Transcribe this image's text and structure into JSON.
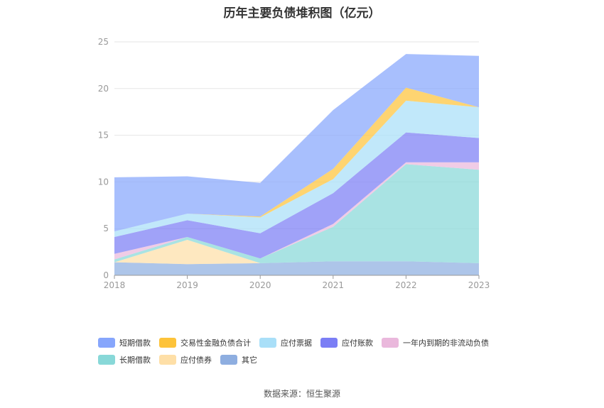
{
  "chart_data": {
    "type": "area",
    "stacked": true,
    "title": "历年主要负债堆积图（亿元）",
    "x": [
      "2018",
      "2019",
      "2020",
      "2021",
      "2022",
      "2023"
    ],
    "ylim": [
      0,
      25
    ],
    "yticks": [
      0,
      5,
      10,
      15,
      20,
      25
    ],
    "grid": true,
    "legend_position": "bottom",
    "series": [
      {
        "name": "其它",
        "color": "#8eaee0",
        "values": [
          1.4,
          1.2,
          1.3,
          1.5,
          1.5,
          1.3
        ]
      },
      {
        "name": "应付债券",
        "color": "#fedfa7",
        "values": [
          0.0,
          2.6,
          0.0,
          0.0,
          0.0,
          0.0
        ]
      },
      {
        "name": "长期借款",
        "color": "#88d8d8",
        "values": [
          0.3,
          0.3,
          0.5,
          3.7,
          10.4,
          10.0
        ]
      },
      {
        "name": "一年内到期的非流动负债",
        "color": "#eab8dc",
        "values": [
          0.6,
          0.0,
          0.0,
          0.3,
          0.2,
          0.8
        ]
      },
      {
        "name": "应付账款",
        "color": "#7b7ef5",
        "values": [
          1.8,
          1.8,
          2.7,
          3.3,
          3.2,
          2.6
        ]
      },
      {
        "name": "应付票据",
        "color": "#a9dff8",
        "values": [
          0.6,
          0.7,
          1.7,
          1.5,
          3.4,
          3.3
        ]
      },
      {
        "name": "交易性金融负债合计",
        "color": "#fdc33a",
        "values": [
          0.0,
          0.0,
          0.1,
          1.1,
          1.4,
          0.0
        ]
      },
      {
        "name": "短期借款",
        "color": "#87a6fc",
        "values": [
          5.8,
          4.0,
          3.6,
          6.3,
          3.6,
          5.5
        ]
      }
    ]
  },
  "legend": {
    "row1": [
      {
        "name": "短期借款",
        "color": "#87a6fc"
      },
      {
        "name": "交易性金融负债合计",
        "color": "#fdc33a"
      },
      {
        "name": "应付票据",
        "color": "#a9dff8"
      },
      {
        "name": "应付账款",
        "color": "#7b7ef5"
      },
      {
        "name": "一年内到期的非流动负债",
        "color": "#eab8dc"
      }
    ],
    "row2": [
      {
        "name": "长期借款",
        "color": "#88d8d8"
      },
      {
        "name": "应付债券",
        "color": "#fedfa7"
      },
      {
        "name": "其它",
        "color": "#8eaee0"
      }
    ]
  },
  "source": "数据来源：恒生聚源"
}
